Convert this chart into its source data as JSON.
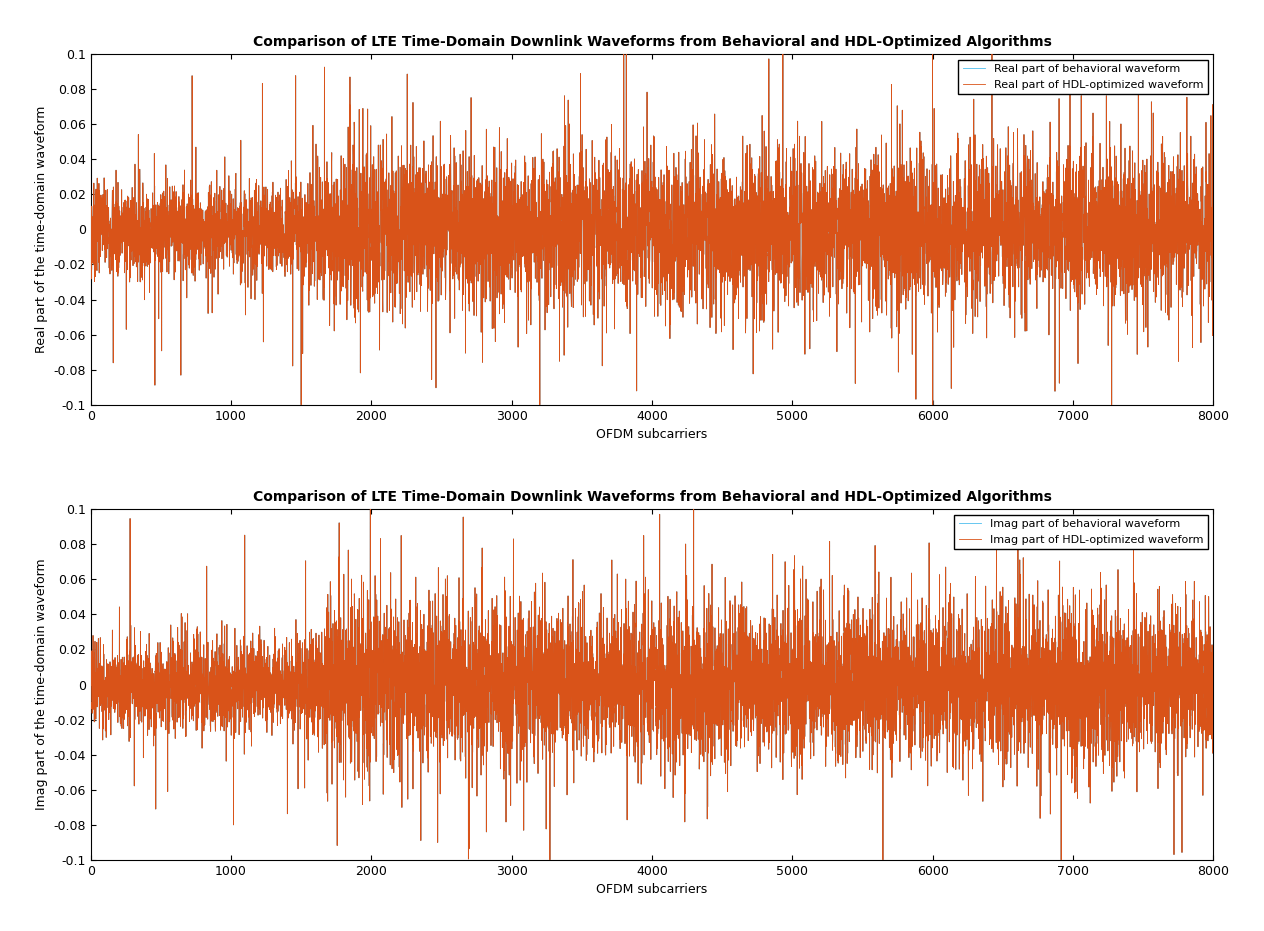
{
  "title": "Comparison of LTE Time-Domain Downlink Waveforms from Behavioral and HDL-Optimized Algorithms",
  "xlabel": "OFDM subcarriers",
  "ylabel_top": "Real part of the time-domain waveform",
  "ylabel_bottom": "Imag part of the time-domain waveform",
  "legend_top": [
    "Real part of behavioral waveform",
    "Real part of HDL-optimized waveform"
  ],
  "legend_bottom": [
    "Imag part of behavioral waveform",
    "Imag part of HDL-optimized waveform"
  ],
  "xlim": [
    0,
    8000
  ],
  "ylim": [
    -0.1,
    0.1
  ],
  "xticks": [
    0,
    1000,
    2000,
    3000,
    4000,
    5000,
    6000,
    7000,
    8000
  ],
  "yticks": [
    -0.1,
    -0.08,
    -0.06,
    -0.04,
    -0.02,
    0,
    0.02,
    0.04,
    0.06,
    0.08,
    0.1
  ],
  "color_behavioral": "#4DBEEE",
  "color_hdl": "#D95319",
  "n_samples": 8000,
  "seed_real": 7,
  "seed_imag": 13,
  "title_fontsize": 10,
  "label_fontsize": 9,
  "tick_fontsize": 9,
  "legend_fontsize": 8,
  "figsize": [
    12.64,
    9.31
  ],
  "dpi": 100
}
